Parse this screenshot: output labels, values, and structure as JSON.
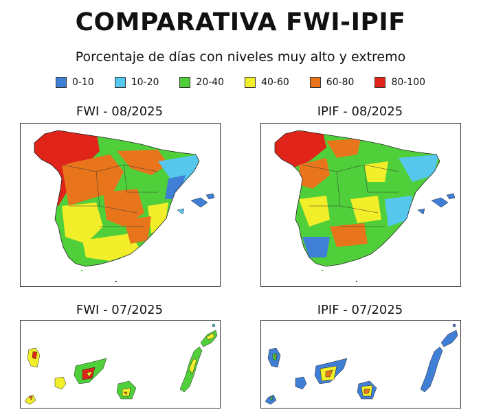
{
  "header": {
    "title": "COMPARATIVA FWI-IPIF",
    "subtitle": "Porcentaje de días con niveles muy alto y extremo"
  },
  "legend": [
    {
      "label": "0-10",
      "color": "#3f7fd6"
    },
    {
      "label": "10-20",
      "color": "#56c8ee"
    },
    {
      "label": "20-40",
      "color": "#4fcf3a"
    },
    {
      "label": "40-60",
      "color": "#f2ee2a"
    },
    {
      "label": "60-80",
      "color": "#e8751c"
    },
    {
      "label": "80-100",
      "color": "#e0241a"
    }
  ],
  "panels": {
    "fwi_peninsula": {
      "title": "FWI - 08/2025"
    },
    "ipif_peninsula": {
      "title": "IPIF - 08/2025"
    },
    "fwi_canarias": {
      "title": "FWI - 07/2025"
    },
    "ipif_canarias": {
      "title": "IPIF - 07/2025"
    }
  }
}
